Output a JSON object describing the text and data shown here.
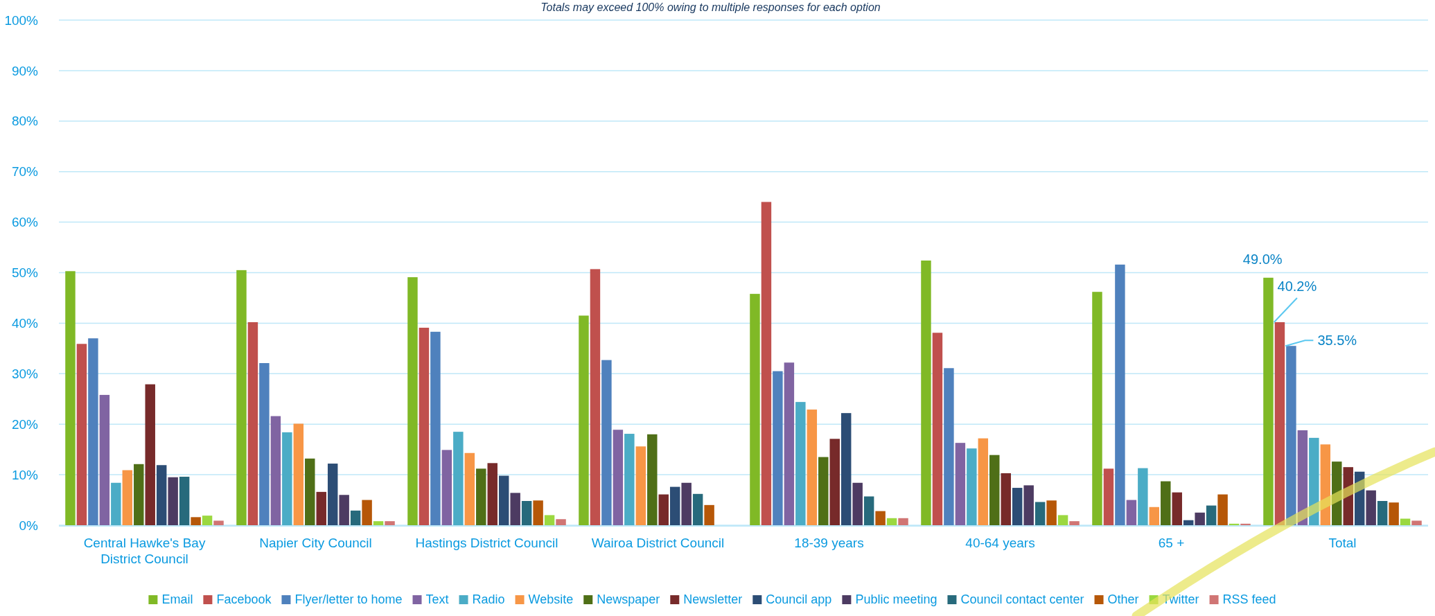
{
  "chart_data": {
    "type": "bar",
    "title": "Totals may exceed 100% owing to multiple responses for each option",
    "categories": [
      "Central Hawke's Bay District Council",
      "Napier City Council",
      "Hastings District Council",
      "Wairoa District Council",
      "18-39 years",
      "40-64 years",
      "65 +",
      "Total"
    ],
    "series": [
      {
        "name": "Email",
        "color": "#80b926",
        "values": [
          50.3,
          50.5,
          49.1,
          41.5,
          45.8,
          52.4,
          46.2,
          49.0
        ],
        "value_labels": [
          null,
          null,
          null,
          null,
          null,
          null,
          null,
          "49.0%"
        ]
      },
      {
        "name": "Facebook",
        "color": "#c0504d",
        "values": [
          35.9,
          40.2,
          39.1,
          50.7,
          64.0,
          38.1,
          11.2,
          40.2
        ],
        "value_labels": [
          null,
          null,
          null,
          null,
          null,
          null,
          null,
          "40.2%"
        ]
      },
      {
        "name": "Flyer/letter to home",
        "color": "#4f81bd",
        "values": [
          37.0,
          32.1,
          38.3,
          32.7,
          30.5,
          31.1,
          51.6,
          35.5
        ],
        "value_labels": [
          null,
          null,
          null,
          null,
          null,
          null,
          null,
          "35.5%"
        ]
      },
      {
        "name": "Text",
        "color": "#8064a2",
        "values": [
          25.8,
          21.6,
          14.9,
          18.9,
          32.2,
          16.3,
          5.0,
          18.8
        ]
      },
      {
        "name": "Radio",
        "color": "#4bacc6",
        "values": [
          8.4,
          18.4,
          18.5,
          18.1,
          24.4,
          15.2,
          11.3,
          17.3
        ]
      },
      {
        "name": "Website",
        "color": "#f79646",
        "values": [
          10.9,
          20.1,
          14.3,
          15.6,
          22.9,
          17.2,
          3.6,
          16.0
        ]
      },
      {
        "name": "Newspaper",
        "color": "#4f6f17",
        "values": [
          12.1,
          13.2,
          11.2,
          18.0,
          13.5,
          13.9,
          8.7,
          12.6
        ]
      },
      {
        "name": "Newsletter",
        "color": "#772a2a",
        "values": [
          27.9,
          6.6,
          12.3,
          6.1,
          17.1,
          10.3,
          6.5,
          11.5
        ]
      },
      {
        "name": "Council app",
        "color": "#2c4d75",
        "values": [
          11.9,
          12.2,
          9.8,
          7.6,
          22.2,
          7.4,
          1.0,
          10.6
        ]
      },
      {
        "name": "Public meeting",
        "color": "#4d3b62",
        "values": [
          9.5,
          6.0,
          6.4,
          8.4,
          8.4,
          7.9,
          2.5,
          6.9
        ]
      },
      {
        "name": "Council contact center",
        "color": "#276a7c",
        "values": [
          9.6,
          2.9,
          4.8,
          6.2,
          5.7,
          4.6,
          3.9,
          4.8
        ]
      },
      {
        "name": "Other",
        "color": "#b65708",
        "values": [
          1.6,
          5.0,
          4.9,
          4.0,
          2.8,
          4.9,
          6.1,
          4.5
        ]
      },
      {
        "name": "Twitter",
        "color": "#9bd840",
        "values": [
          1.9,
          0.8,
          2.0,
          null,
          1.4,
          2.0,
          0.3,
          1.3
        ]
      },
      {
        "name": "RSS feed",
        "color": "#d07574",
        "values": [
          0.9,
          0.8,
          1.2,
          null,
          1.4,
          0.8,
          0.3,
          0.9
        ]
      }
    ],
    "ylim": [
      0,
      100
    ],
    "yticks": [
      {
        "value": 0,
        "label": "0%"
      },
      {
        "value": 10,
        "label": "10%"
      },
      {
        "value": 20,
        "label": "20%"
      },
      {
        "value": 30,
        "label": "30%"
      },
      {
        "value": 40,
        "label": "40%"
      },
      {
        "value": 50,
        "label": "50%"
      },
      {
        "value": 60,
        "label": "60%"
      },
      {
        "value": 70,
        "label": "70%"
      },
      {
        "value": 80,
        "label": "80%"
      },
      {
        "value": 90,
        "label": "90%"
      },
      {
        "value": 100,
        "label": "100%"
      }
    ],
    "grid": "y",
    "legend": "bottom"
  }
}
